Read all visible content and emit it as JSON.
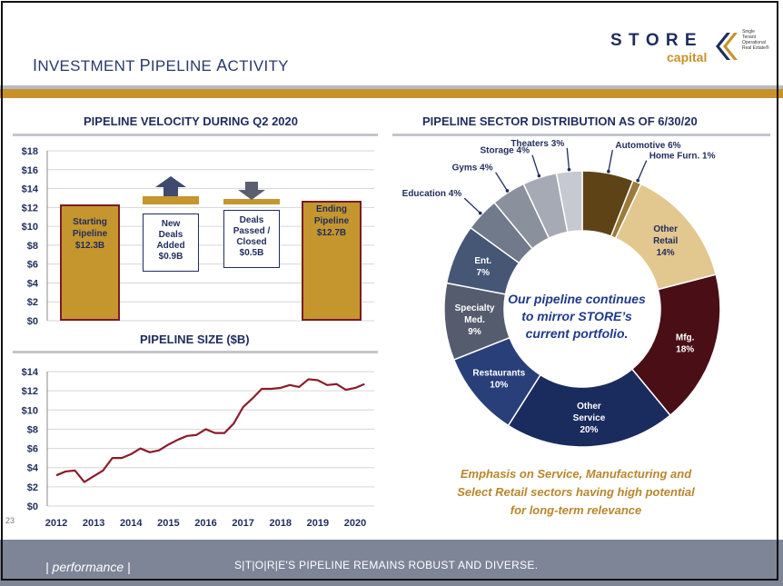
{
  "slide": {
    "title_first": "I",
    "title_rest1": "NVESTMENT ",
    "title_p": "P",
    "title_rest2": "IPELINE ",
    "title_a": "A",
    "title_rest3": "CTIVITY",
    "logo_main": "S T O R E",
    "logo_sub": "capital",
    "logo_tag": "Single Tenant Operational Real Estate®",
    "page_number": "23",
    "footer_left": "| performance |",
    "footer_right": "S|T|O|R|E'S PIPELINE REMAINS ROBUST AND DIVERSE.",
    "callout_line1": "Our pipeline continues",
    "callout_line2": "to mirror STORE’s",
    "callout_line3": "current portfolio.",
    "emphasis_line1": "Emphasis on Service, Manufacturing and",
    "emphasis_line2": "Select Retail sectors having high potential",
    "emphasis_line3": "for long-term relevance",
    "colors": {
      "navy": "#1f2d5c",
      "gold": "#c5962e",
      "maroon": "#7a1c24",
      "footer": "#7d8597"
    }
  },
  "chart_data": [
    {
      "type": "bar",
      "title": "PIPELINE VELOCITY DURING Q2 2020",
      "ylim": [
        0,
        18
      ],
      "yticks": [
        "$0",
        "$2",
        "$4",
        "$6",
        "$8",
        "$10",
        "$12",
        "$14",
        "$16",
        "$18"
      ],
      "bars": [
        {
          "line1": "Starting",
          "line2": "Pipeline",
          "line3": "$12.3B",
          "value": 12.3
        },
        {
          "line1": "New",
          "line2": "Deals",
          "line3": "Added",
          "line4": "$0.9B",
          "value": 0.9,
          "direction": "up"
        },
        {
          "line1": "Deals",
          "line2": "Passed /",
          "line3": "Closed",
          "line4": "$0.5B",
          "value": 0.5,
          "direction": "down"
        },
        {
          "line1": "Ending",
          "line2": "Pipeline",
          "line3": "$12.7B",
          "value": 12.7
        }
      ]
    },
    {
      "type": "line",
      "title": "PIPELINE SIZE ($B)",
      "ylim": [
        0,
        14
      ],
      "yticks": [
        "$0",
        "$2",
        "$4",
        "$6",
        "$8",
        "$10",
        "$12",
        "$14"
      ],
      "xticks": [
        "2012",
        "2013",
        "2014",
        "2015",
        "2016",
        "2017",
        "2018",
        "2019",
        "2020"
      ],
      "x": [
        2012.0,
        2012.25,
        2012.5,
        2012.75,
        2013.0,
        2013.25,
        2013.5,
        2013.75,
        2014.0,
        2014.25,
        2014.5,
        2014.75,
        2015.0,
        2015.25,
        2015.5,
        2015.75,
        2016.0,
        2016.25,
        2016.5,
        2016.75,
        2017.0,
        2017.25,
        2017.5,
        2017.75,
        2018.0,
        2018.25,
        2018.5,
        2018.75,
        2019.0,
        2019.25,
        2019.5,
        2019.75,
        2020.0,
        2020.25
      ],
      "values": [
        3.2,
        3.6,
        3.7,
        2.5,
        3.1,
        3.7,
        5.0,
        5.0,
        5.4,
        6.0,
        5.6,
        5.8,
        6.4,
        6.9,
        7.3,
        7.4,
        8.0,
        7.6,
        7.6,
        8.6,
        10.3,
        11.2,
        12.2,
        12.2,
        12.3,
        12.6,
        12.4,
        13.2,
        13.1,
        12.6,
        12.7,
        12.1,
        12.3,
        12.7
      ]
    },
    {
      "type": "pie",
      "title": "PIPELINE SECTOR DISTRIBUTION AS OF  6/30/20",
      "slices": [
        {
          "name": "Automotive",
          "value": 6,
          "label": "Automotive 6%",
          "color": "#5e4317"
        },
        {
          "name": "Home Furn.",
          "value": 1,
          "label": "Home Furn. 1%",
          "color": "#9b7a3c"
        },
        {
          "name": "Other Retail",
          "value": 14,
          "line1": "Other",
          "line2": "Retail",
          "line3": "14%",
          "color": "#e2c78f"
        },
        {
          "name": "Mfg.",
          "value": 18,
          "line1": "Mfg.",
          "line2": "18%",
          "color": "#4a0e16"
        },
        {
          "name": "Other Service",
          "value": 20,
          "line1": "Other",
          "line2": "Service",
          "line3": "20%",
          "color": "#1a2b5e"
        },
        {
          "name": "Restaurants",
          "value": 10,
          "line1": "Restaurants",
          "line2": "10%",
          "color": "#283f7a"
        },
        {
          "name": "Specialty Med.",
          "value": 9,
          "line1": "Specialty",
          "line2": "Med.",
          "line3": "9%",
          "color": "#555c6e"
        },
        {
          "name": "Ent.",
          "value": 7,
          "line1": "Ent.",
          "line2": "7%",
          "color": "#465675"
        },
        {
          "name": "Education",
          "value": 4,
          "label": "Education 4%",
          "color": "#717a8b"
        },
        {
          "name": "Gyms",
          "value": 4,
          "label": "Gyms 4%",
          "color": "#8a909c"
        },
        {
          "name": "Storage",
          "value": 4,
          "label": "Storage 4%",
          "color": "#a6aab4"
        },
        {
          "name": "Theaters",
          "value": 3,
          "label": "Theaters 3%",
          "color": "#c6c9d0"
        }
      ]
    }
  ]
}
